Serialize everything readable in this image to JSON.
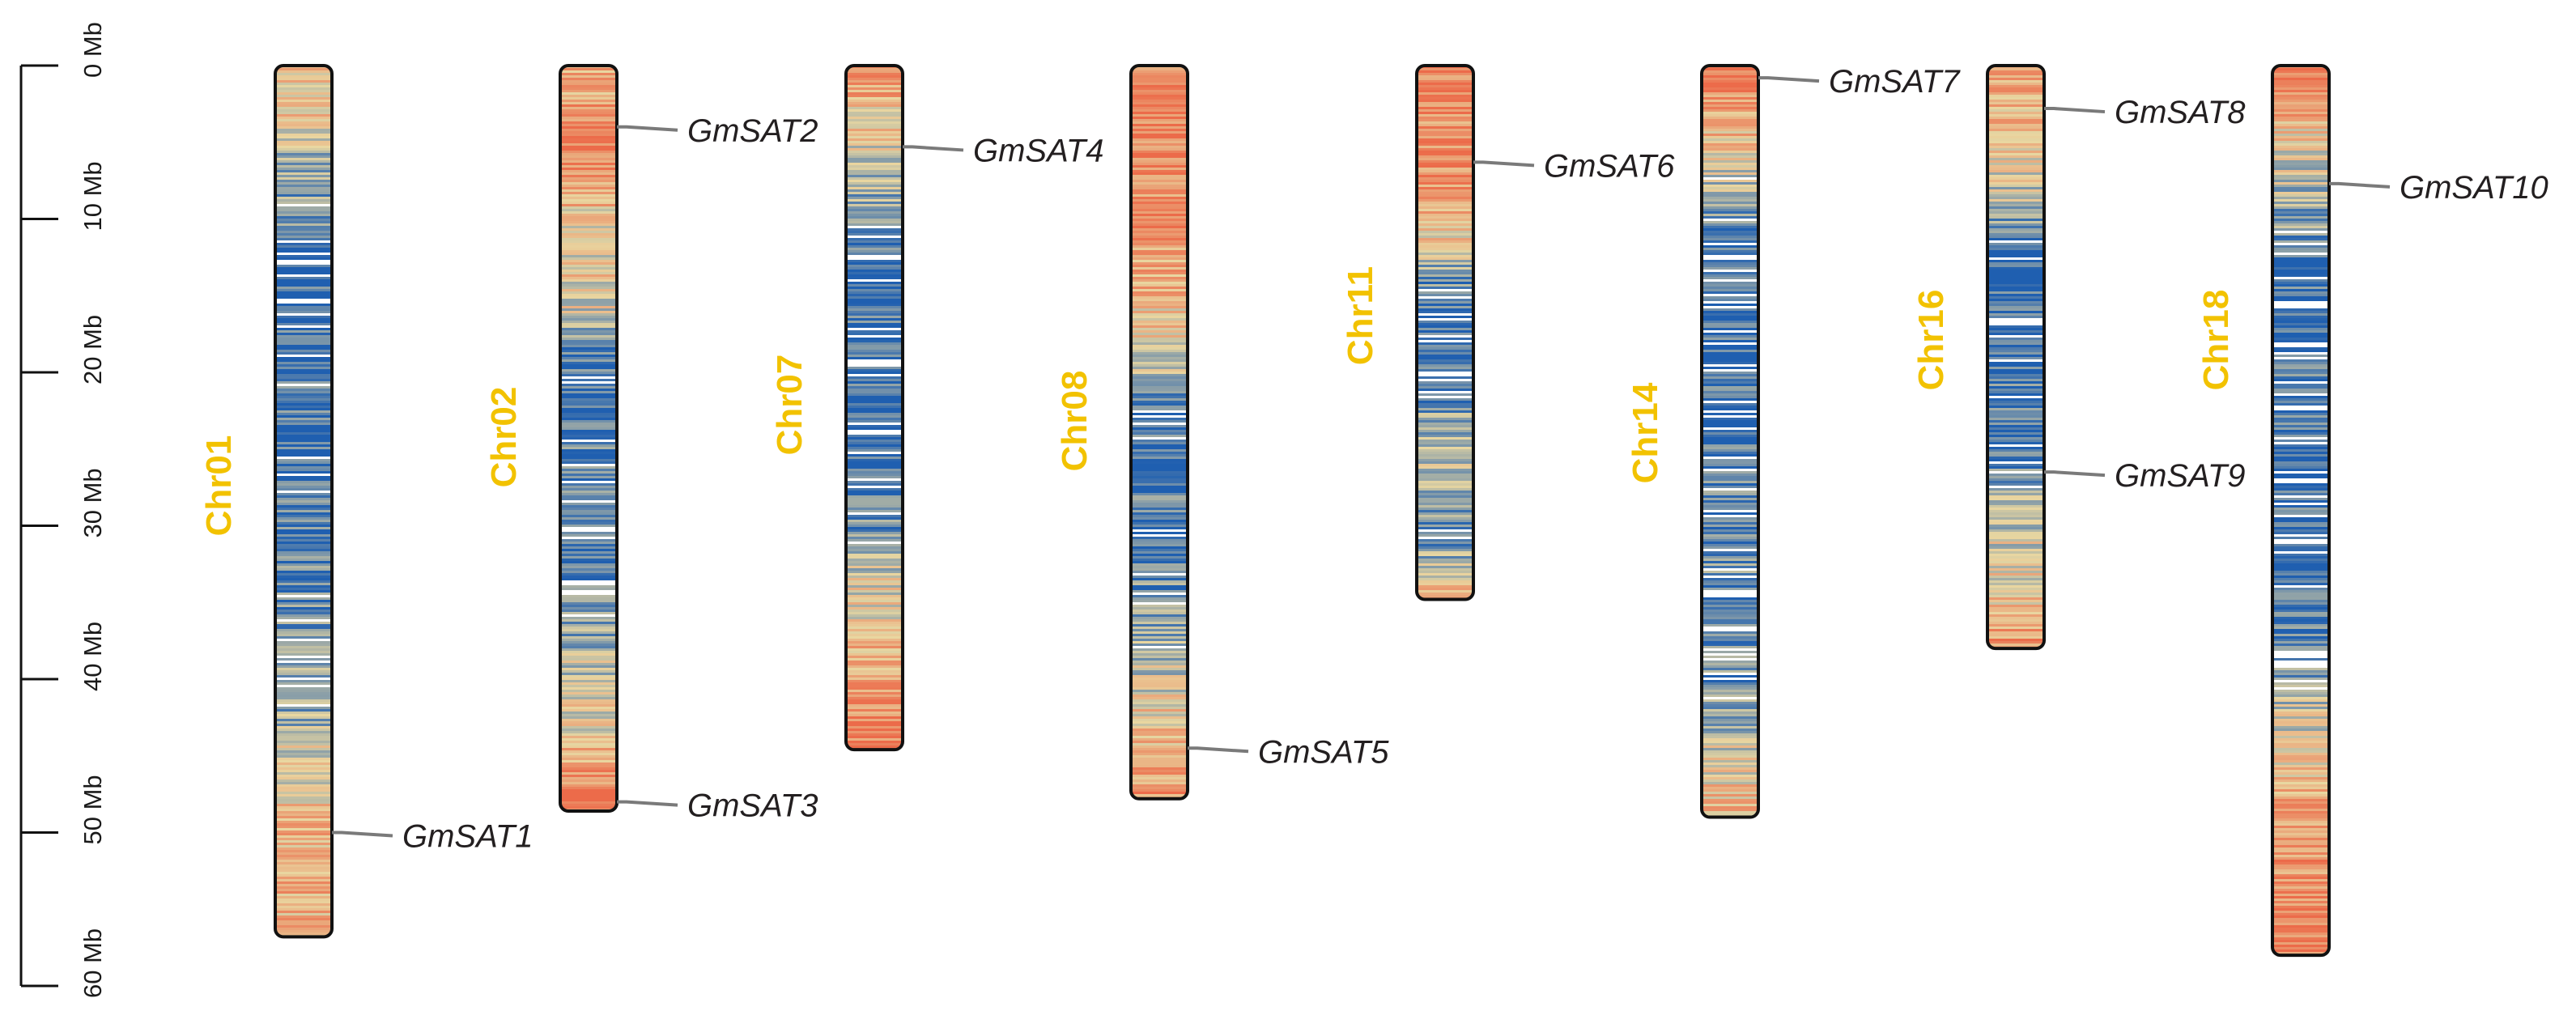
{
  "colors": {
    "chr_label": "#f2c200",
    "density_low": "#1f5fb0",
    "density_mid": "#e9d7a1",
    "density_high": "#ec6b4a",
    "leader_line": "#7a7a7a",
    "gene_label": "#231f20",
    "outline": "#111111"
  },
  "scale_axis": {
    "ticks": [
      {
        "value": 0,
        "label": "0 Mb"
      },
      {
        "value": 10,
        "label": "10 Mb"
      },
      {
        "value": 20,
        "label": "20 Mb"
      },
      {
        "value": 30,
        "label": "30 Mb"
      },
      {
        "value": 40,
        "label": "40 Mb"
      },
      {
        "value": 50,
        "label": "50 Mb"
      },
      {
        "value": 60,
        "label": "60 Mb"
      }
    ]
  },
  "chromosomes": [
    {
      "id": "Chr01",
      "label": "Chr01",
      "length_mb": 56.8,
      "density": [
        0.3,
        0.45,
        0.4,
        0.55,
        0.7,
        0.75,
        0.8,
        0.9,
        0.95,
        0.95,
        0.9,
        0.95,
        0.9,
        0.85,
        0.9,
        0.95,
        0.9,
        0.9,
        0.85,
        0.9,
        0.85,
        0.85,
        0.8,
        0.8,
        0.75,
        0.8,
        0.7,
        0.6,
        0.5,
        0.45,
        0.35,
        0.35,
        0.3,
        0.3,
        0.35,
        0.3
      ],
      "genes": [
        {
          "name": "GmSAT1",
          "position_mb": 50.0
        }
      ]
    },
    {
      "id": "Chr02",
      "label": "Chr02",
      "length_mb": 48.6,
      "density": [
        0.35,
        0.3,
        0.15,
        0.1,
        0.2,
        0.3,
        0.45,
        0.5,
        0.45,
        0.5,
        0.6,
        0.85,
        0.9,
        0.95,
        0.9,
        0.85,
        0.9,
        0.85,
        0.9,
        0.95,
        0.9,
        0.8,
        0.75,
        0.6,
        0.55,
        0.5,
        0.45,
        0.3,
        0.15,
        0.1
      ],
      "genes": [
        {
          "name": "GmSAT2",
          "position_mb": 4.0
        },
        {
          "name": "GmSAT3",
          "position_mb": 48.0
        }
      ]
    },
    {
      "id": "Chr07",
      "label": "Chr07",
      "length_mb": 44.6,
      "density": [
        0.2,
        0.3,
        0.4,
        0.5,
        0.6,
        0.7,
        0.85,
        0.9,
        0.95,
        0.95,
        0.9,
        0.95,
        0.9,
        0.95,
        0.9,
        0.95,
        0.9,
        0.85,
        0.8,
        0.6,
        0.5,
        0.45,
        0.35,
        0.3,
        0.25,
        0.15,
        0.1
      ],
      "genes": [
        {
          "name": "GmSAT4",
          "position_mb": 5.3
        }
      ]
    },
    {
      "id": "Chr08",
      "label": "Chr08",
      "length_mb": 47.8,
      "density": [
        0.15,
        0.2,
        0.1,
        0.15,
        0.1,
        0.2,
        0.15,
        0.25,
        0.3,
        0.35,
        0.45,
        0.55,
        0.7,
        0.85,
        0.9,
        0.95,
        0.9,
        0.85,
        0.9,
        0.85,
        0.8,
        0.75,
        0.7,
        0.6,
        0.5,
        0.4,
        0.3,
        0.25,
        0.2
      ],
      "genes": [
        {
          "name": "GmSAT5",
          "position_mb": 44.5
        }
      ]
    },
    {
      "id": "Chr11",
      "label": "Chr11",
      "length_mb": 34.8,
      "density": [
        0.1,
        0.15,
        0.2,
        0.15,
        0.2,
        0.25,
        0.3,
        0.45,
        0.7,
        0.9,
        0.95,
        0.95,
        0.9,
        0.85,
        0.7,
        0.6,
        0.65,
        0.7,
        0.8,
        0.75,
        0.6,
        0.2
      ],
      "genes": [
        {
          "name": "GmSAT6",
          "position_mb": 6.3
        }
      ]
    },
    {
      "id": "Chr14",
      "label": "Chr14",
      "length_mb": 49.0,
      "density": [
        0.05,
        0.15,
        0.3,
        0.45,
        0.6,
        0.75,
        0.85,
        0.9,
        0.95,
        0.95,
        0.9,
        0.95,
        0.9,
        0.95,
        0.9,
        0.85,
        0.9,
        0.85,
        0.8,
        0.85,
        0.9,
        0.85,
        0.8,
        0.75,
        0.6,
        0.5,
        0.4,
        0.3
      ],
      "genes": [
        {
          "name": "GmSAT7",
          "position_mb": 0.8
        }
      ]
    },
    {
      "id": "Chr16",
      "label": "Chr16",
      "length_mb": 38.0,
      "density": [
        0.2,
        0.3,
        0.35,
        0.4,
        0.5,
        0.65,
        0.8,
        0.9,
        0.95,
        0.9,
        0.95,
        0.9,
        0.85,
        0.9,
        0.85,
        0.75,
        0.6,
        0.55,
        0.5,
        0.45,
        0.3,
        0.15
      ],
      "genes": [
        {
          "name": "GmSAT8",
          "position_mb": 2.8
        },
        {
          "name": "GmSAT9",
          "position_mb": 26.5
        }
      ]
    },
    {
      "id": "Chr18",
      "label": "Chr18",
      "length_mb": 58.0,
      "density": [
        0.1,
        0.2,
        0.35,
        0.5,
        0.6,
        0.7,
        0.8,
        0.9,
        0.85,
        0.9,
        0.95,
        0.9,
        0.95,
        0.9,
        0.85,
        0.95,
        0.9,
        0.95,
        0.9,
        0.85,
        0.9,
        0.8,
        0.75,
        0.6,
        0.5,
        0.4,
        0.3,
        0.25,
        0.2,
        0.2,
        0.15,
        0.15,
        0.1
      ],
      "genes": [
        {
          "name": "GmSAT10",
          "position_mb": 7.7
        }
      ]
    }
  ]
}
